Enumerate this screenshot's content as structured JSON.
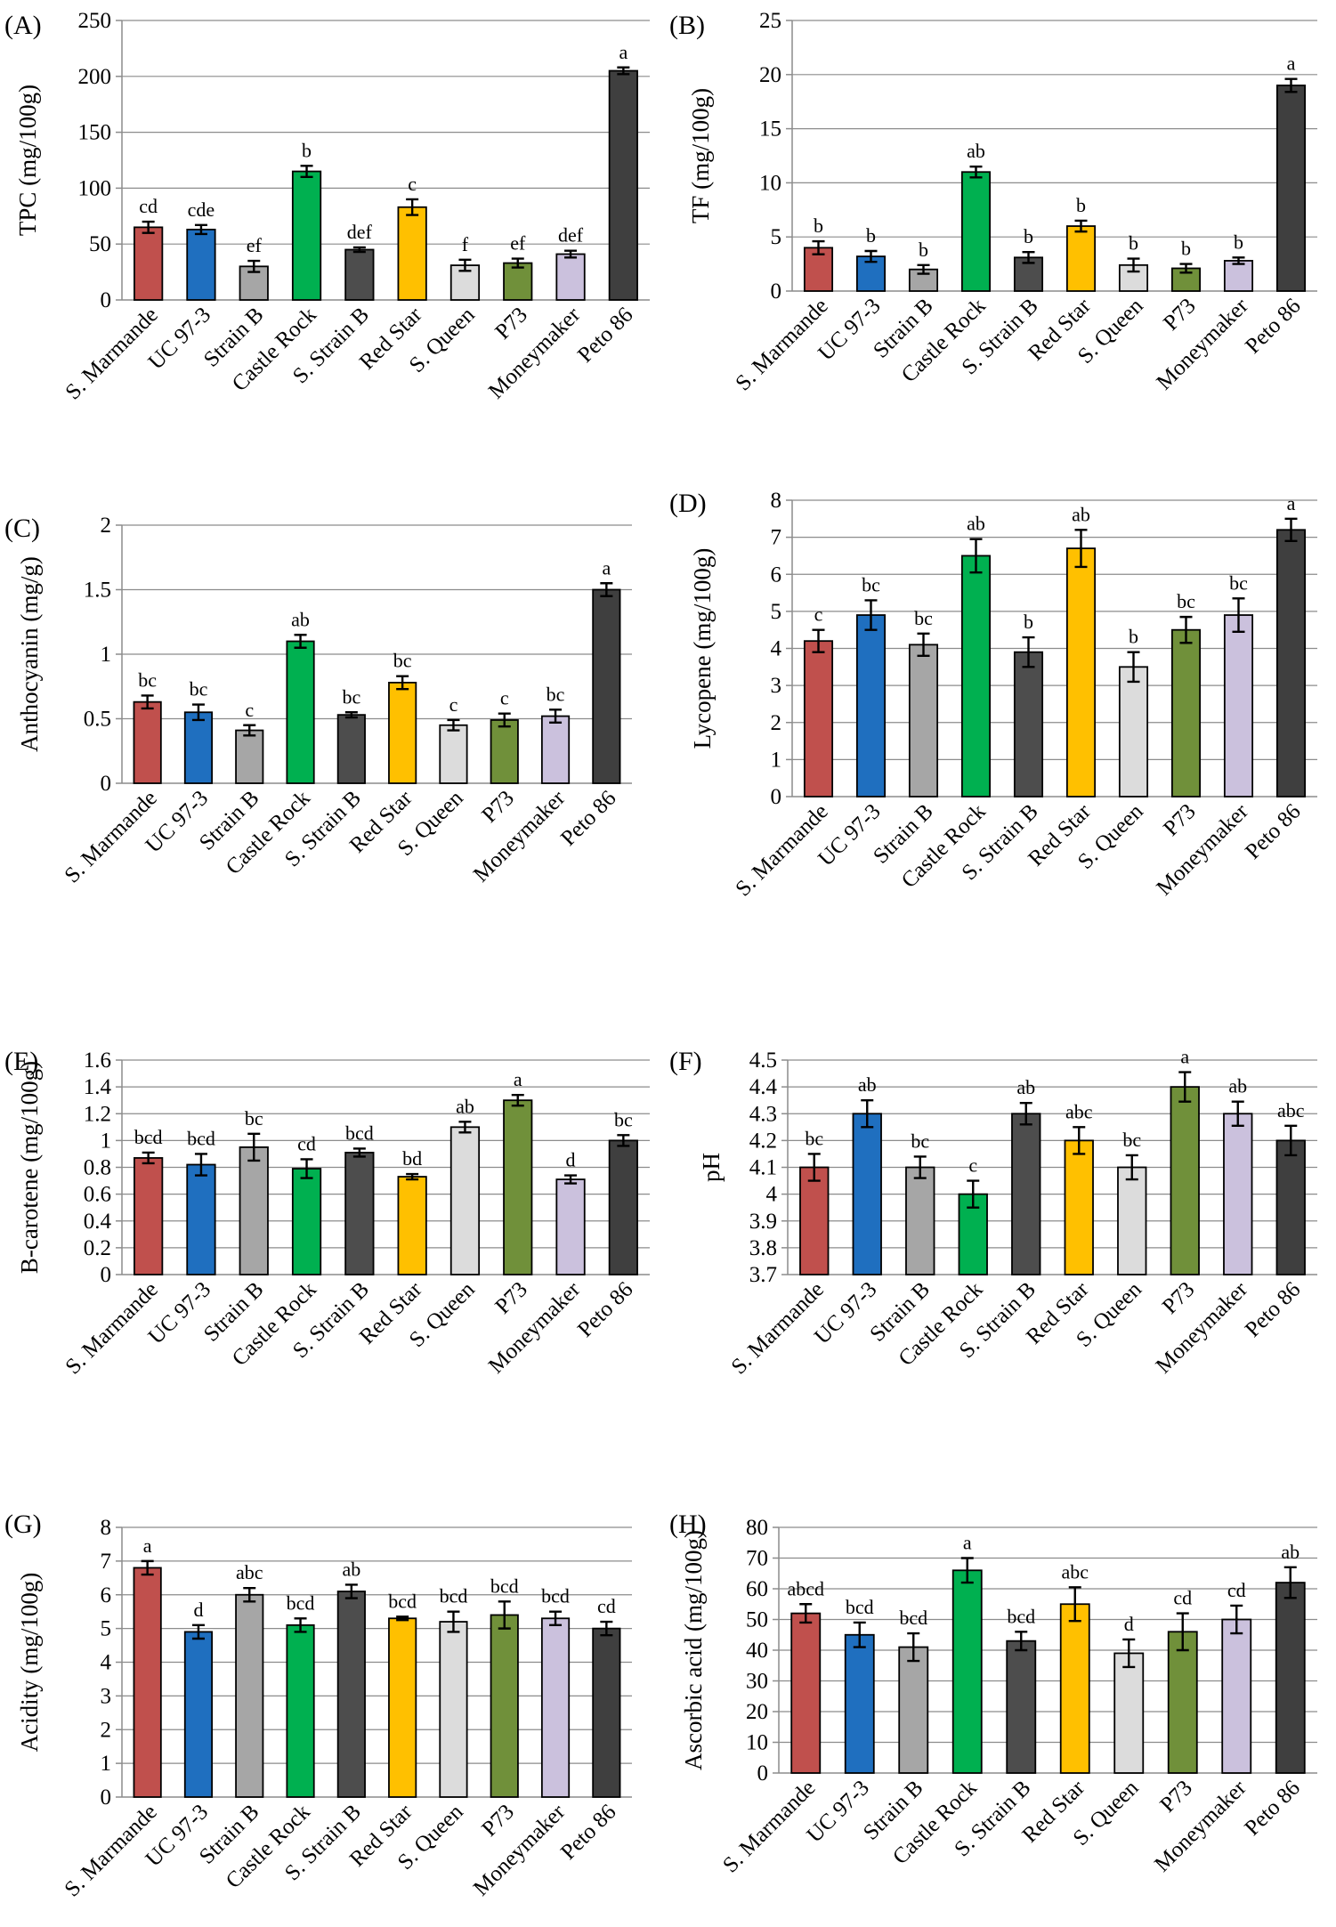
{
  "colors": [
    "#c0504d",
    "#1f6fbf",
    "#a6a6a6",
    "#00b050",
    "#4d4d4d",
    "#ffc000",
    "#dcdcdc",
    "#70903a",
    "#cbc1dd",
    "#3f3f3f"
  ],
  "chart_data": [
    {
      "panel": "(A)",
      "type": "bar",
      "ylabel": "TPC (mg/100g)",
      "categories": [
        "S. Marmande",
        "UC 97-3",
        "Strain B",
        "Castle Rock",
        "S. Strain B",
        "Red Star",
        "S. Queen",
        "P73",
        "Moneymaker",
        "Peto 86"
      ],
      "values": [
        65,
        63,
        30,
        115,
        45,
        83,
        31,
        33,
        41,
        205
      ],
      "errors": [
        5,
        4,
        5,
        5,
        2,
        7,
        5,
        4,
        3,
        3
      ],
      "letters": [
        "cd",
        "cde",
        "ef",
        "b",
        "def",
        "c",
        "f",
        "ef",
        "def",
        "a"
      ],
      "ylim": [
        0,
        250
      ],
      "yticks": [
        "0",
        "50",
        "100",
        "150",
        "200",
        "250"
      ],
      "grid": true
    },
    {
      "panel": "(B)",
      "type": "bar",
      "ylabel": "TF (mg/100g)",
      "categories": [
        "S. Marmande",
        "UC 97-3",
        "Strain B",
        "Castle Rock",
        "S. Strain B",
        "Red Star",
        "S. Queen",
        "P73",
        "Moneymaker",
        "Peto 86"
      ],
      "values": [
        4,
        3.2,
        2,
        11,
        3.1,
        6,
        2.4,
        2.1,
        2.8,
        19
      ],
      "errors": [
        0.6,
        0.5,
        0.4,
        0.5,
        0.5,
        0.5,
        0.6,
        0.4,
        0.3,
        0.6
      ],
      "letters": [
        "b",
        "b",
        "b",
        "ab",
        "b",
        "b",
        "b",
        "b",
        "b",
        "a"
      ],
      "ylim": [
        0,
        25
      ],
      "yticks": [
        "0",
        "5",
        "10",
        "15",
        "20",
        "25"
      ],
      "grid": true
    },
    {
      "panel": "(C)",
      "type": "bar",
      "ylabel": "Anthocyanin (mg/g)",
      "categories": [
        "S. Marmande",
        "UC 97-3",
        "Strain B",
        "Castle Rock",
        "S. Strain B",
        "Red Star",
        "S. Queen",
        "P73",
        "Moneymaker",
        "Peto 86"
      ],
      "values": [
        0.63,
        0.55,
        0.41,
        1.1,
        0.53,
        0.78,
        0.45,
        0.49,
        0.52,
        1.5
      ],
      "errors": [
        0.05,
        0.06,
        0.04,
        0.05,
        0.02,
        0.05,
        0.04,
        0.05,
        0.05,
        0.05
      ],
      "letters": [
        "bc",
        "bc",
        "c",
        "ab",
        "bc",
        "bc",
        "c",
        "c",
        "bc",
        "a"
      ],
      "ylim": [
        0,
        2
      ],
      "yticks": [
        "0",
        "0.5",
        "1",
        "1.5",
        "2"
      ],
      "grid": true
    },
    {
      "panel": "(D)",
      "type": "bar",
      "ylabel": "Lycopene (mg/100g)",
      "categories": [
        "S. Marmande",
        "UC 97-3",
        "Strain B",
        "Castle Rock",
        "S. Strain B",
        "Red Star",
        "S. Queen",
        "P73",
        "Moneymaker",
        "Peto 86"
      ],
      "values": [
        4.2,
        4.9,
        4.1,
        6.5,
        3.9,
        6.7,
        3.5,
        4.5,
        4.9,
        7.2
      ],
      "errors": [
        0.3,
        0.4,
        0.3,
        0.45,
        0.4,
        0.5,
        0.4,
        0.35,
        0.45,
        0.3
      ],
      "letters": [
        "c",
        "bc",
        "bc",
        "ab",
        "b",
        "ab",
        "b",
        "bc",
        "bc",
        "a"
      ],
      "ylim": [
        0,
        8
      ],
      "yticks": [
        "0",
        "1",
        "2",
        "3",
        "4",
        "5",
        "6",
        "7",
        "8"
      ],
      "grid": true
    },
    {
      "panel": "(E)",
      "type": "bar",
      "ylabel": "B-carotene (mg/100g)",
      "categories": [
        "S. Marmande",
        "UC 97-3",
        "Strain B",
        "Castle Rock",
        "S. Strain B",
        "Red Star",
        "S. Queen",
        "P73",
        "Moneymaker",
        "Peto 86"
      ],
      "values": [
        0.87,
        0.82,
        0.95,
        0.79,
        0.91,
        0.73,
        1.1,
        1.3,
        0.71,
        1.0
      ],
      "errors": [
        0.04,
        0.08,
        0.1,
        0.07,
        0.03,
        0.02,
        0.04,
        0.04,
        0.03,
        0.04
      ],
      "letters": [
        "bcd",
        "bcd",
        "bc",
        "cd",
        "bcd",
        "bd",
        "ab",
        "a",
        "d",
        "bc"
      ],
      "ylim": [
        0,
        1.6
      ],
      "yticks": [
        "0",
        "0.2",
        "0.4",
        "0.6",
        "0.8",
        "1",
        "1.2",
        "1.4",
        "1.6"
      ],
      "grid": true
    },
    {
      "panel": "(F)",
      "type": "bar",
      "ylabel": "pH",
      "categories": [
        "S. Marmande",
        "UC 97-3",
        "Strain B",
        "Castle Rock",
        "S. Strain B",
        "Red Star",
        "S. Queen",
        "P73",
        "Moneymaker",
        "Peto 86"
      ],
      "values": [
        4.1,
        4.3,
        4.1,
        4.0,
        4.3,
        4.2,
        4.1,
        4.4,
        4.3,
        4.2
      ],
      "errors": [
        0.05,
        0.05,
        0.04,
        0.05,
        0.04,
        0.05,
        0.045,
        0.055,
        0.045,
        0.055
      ],
      "letters": [
        "bc",
        "ab",
        "bc",
        "c",
        "ab",
        "abc",
        "bc",
        "a",
        "ab",
        "abc"
      ],
      "ylim": [
        3.7,
        4.5
      ],
      "yticks": [
        "3.7",
        "3.8",
        "3.9",
        "4",
        "4.1",
        "4.2",
        "4.3",
        "4.4",
        "4.5"
      ],
      "grid": true
    },
    {
      "panel": "(G)",
      "type": "bar",
      "ylabel": "Acidity (mg/100g)",
      "categories": [
        "S. Marmande",
        "UC 97-3",
        "Strain B",
        "Castle Rock",
        "S. Strain B",
        "Red Star",
        "S. Queen",
        "P73",
        "Moneymaker",
        "Peto 86"
      ],
      "values": [
        6.8,
        4.9,
        6.0,
        5.1,
        6.1,
        5.3,
        5.2,
        5.4,
        5.3,
        5.0
      ],
      "errors": [
        0.2,
        0.2,
        0.2,
        0.2,
        0.2,
        0.05,
        0.3,
        0.4,
        0.2,
        0.2
      ],
      "letters": [
        "a",
        "d",
        "abc",
        "bcd",
        "ab",
        "bcd",
        "bcd",
        "bcd",
        "bcd",
        "cd"
      ],
      "ylim": [
        0,
        8
      ],
      "yticks": [
        "0",
        "1",
        "2",
        "3",
        "4",
        "5",
        "6",
        "7",
        "8"
      ],
      "grid": true
    },
    {
      "panel": "(H)",
      "type": "bar",
      "ylabel": "Ascorbic acid (mg/100g)",
      "categories": [
        "S. Marmande",
        "UC 97-3",
        "Strain B",
        "Castle Rock",
        "S. Strain B",
        "Red Star",
        "S. Queen",
        "P73",
        "Moneymaker",
        "Peto 86"
      ],
      "values": [
        52,
        45,
        41,
        66,
        43,
        55,
        39,
        46,
        50,
        62
      ],
      "errors": [
        3,
        4,
        4.5,
        4,
        3,
        5.5,
        4.5,
        6,
        4.5,
        5
      ],
      "letters": [
        "abcd",
        "bcd",
        "bcd",
        "a",
        "bcd",
        "abc",
        "d",
        "cd",
        "cd",
        "ab"
      ],
      "ylim": [
        0,
        80
      ],
      "yticks": [
        "0",
        "10",
        "20",
        "30",
        "40",
        "50",
        "60",
        "70",
        "80"
      ],
      "grid": true
    }
  ]
}
